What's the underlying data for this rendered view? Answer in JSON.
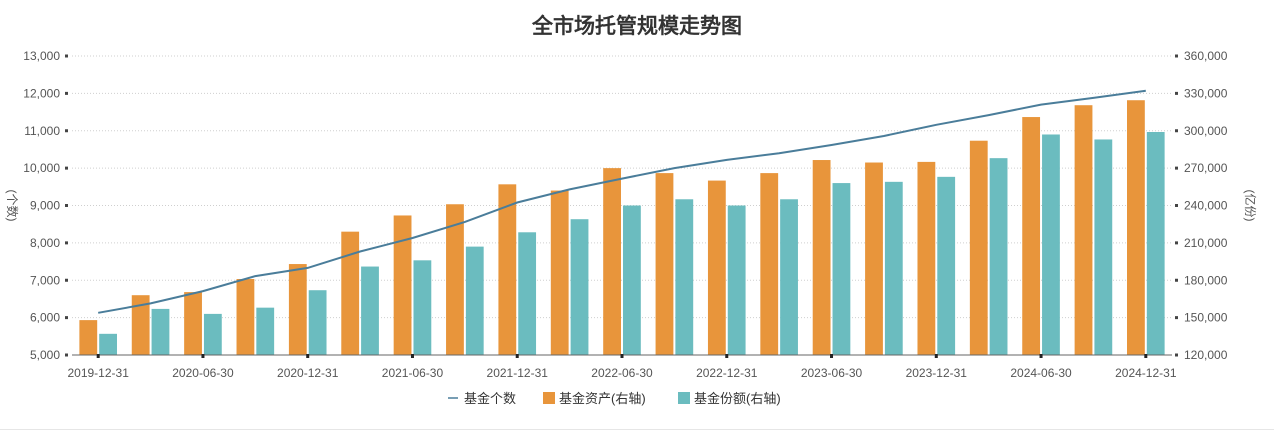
{
  "chart_data": {
    "type": "bar",
    "title": "全市场托管规模走势图",
    "x_tick_labels": [
      "2019-12-31",
      "2020-06-30",
      "2020-12-31",
      "2021-06-30",
      "2021-12-31",
      "2022-06-30",
      "2022-12-31",
      "2023-06-30",
      "2023-12-31",
      "2024-06-30",
      "2024-12-31"
    ],
    "left_axis": {
      "label": "(个数)",
      "ylim": [
        5000,
        13000
      ],
      "ticks": [
        "5,000",
        "6,000",
        "7,000",
        "8,000",
        "9,000",
        "10,000",
        "11,000",
        "12,000",
        "13,000"
      ]
    },
    "right_axis": {
      "label": "(亿份)",
      "ylim": [
        120000,
        360000
      ],
      "ticks": [
        "120,000",
        "150,000",
        "180,000",
        "210,000",
        "240,000",
        "270,000",
        "300,000",
        "330,000",
        "360,000"
      ]
    },
    "n_points": 21,
    "grid": true,
    "legend_position": "bottom",
    "series": [
      {
        "name": "基金个数",
        "kind": "line",
        "axis": "left",
        "color": "#4a7d9a",
        "values": [
          6130,
          6380,
          6710,
          7110,
          7330,
          7770,
          8130,
          8560,
          9080,
          9430,
          9720,
          10000,
          10220,
          10400,
          10620,
          10860,
          11160,
          11420,
          11700,
          11880,
          12070
        ]
      },
      {
        "name": "基金资产(右轴)",
        "kind": "bar",
        "axis": "right",
        "color": "#e8953b",
        "values": [
          148000,
          168000,
          170500,
          181000,
          193000,
          219000,
          232000,
          241000,
          257000,
          252000,
          270000,
          266000,
          260000,
          266000,
          276500,
          274500,
          275000,
          292000,
          311000,
          320500,
          324500
        ]
      },
      {
        "name": "基金份额(右轴)",
        "kind": "bar",
        "axis": "right",
        "color": "#6bbcbf",
        "values": [
          137000,
          157000,
          153000,
          158000,
          172000,
          191000,
          196000,
          207000,
          218500,
          229000,
          240000,
          245000,
          240000,
          245000,
          258000,
          259000,
          263000,
          278000,
          297000,
          293000,
          299000
        ]
      }
    ]
  }
}
